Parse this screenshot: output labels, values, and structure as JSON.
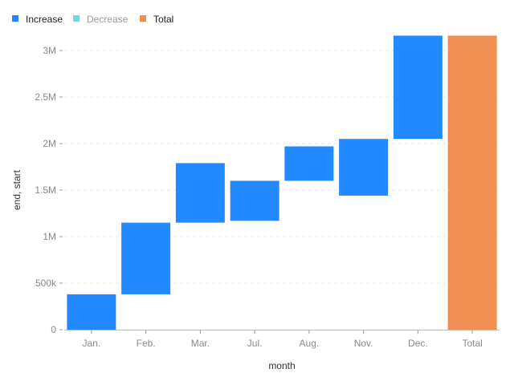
{
  "chart_data": {
    "type": "bar",
    "subtype": "waterfall",
    "xlabel": "month",
    "ylabel": "end, start",
    "ylim": [
      0,
      3200000
    ],
    "yticks": [
      0,
      500000,
      1000000,
      1500000,
      2000000,
      2500000,
      3000000
    ],
    "ytick_labels": [
      "0",
      "500k",
      "1M",
      "1.5M",
      "2M",
      "2.5M",
      "3M"
    ],
    "grid": true,
    "legend_position": "top-left",
    "legend": [
      {
        "label": "Increase",
        "color": "#2389ff",
        "muted": false
      },
      {
        "label": "Decrease",
        "color": "#72d7e0",
        "muted": true
      },
      {
        "label": "Total",
        "color": "#f08f53",
        "muted": false
      }
    ],
    "categories": [
      "Jan.",
      "Feb.",
      "Mar.",
      "Jul.",
      "Aug.",
      "Nov.",
      "Dec.",
      "Total"
    ],
    "bars": [
      {
        "category": "Jan.",
        "start": 0,
        "end": 380000,
        "kind": "Increase"
      },
      {
        "category": "Feb.",
        "start": 380000,
        "end": 1150000,
        "kind": "Increase"
      },
      {
        "category": "Mar.",
        "start": 1150000,
        "end": 1790000,
        "kind": "Increase"
      },
      {
        "category": "Jul.",
        "start": 1170000,
        "end": 1600000,
        "kind": "Increase"
      },
      {
        "category": "Aug.",
        "start": 1600000,
        "end": 1970000,
        "kind": "Increase"
      },
      {
        "category": "Nov.",
        "start": 1440000,
        "end": 2050000,
        "kind": "Increase"
      },
      {
        "category": "Dec.",
        "start": 2050000,
        "end": 3160000,
        "kind": "Increase"
      },
      {
        "category": "Total",
        "start": 0,
        "end": 3160000,
        "kind": "Total"
      }
    ]
  }
}
